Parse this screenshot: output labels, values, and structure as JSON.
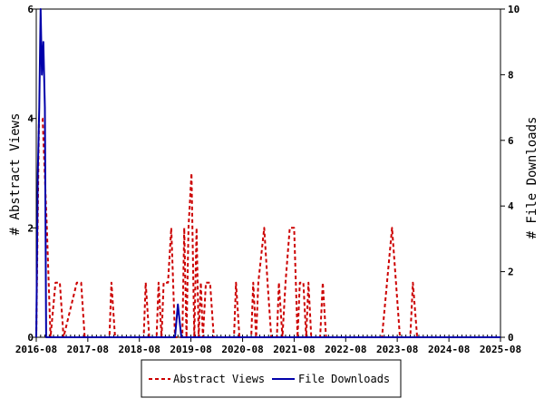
{
  "chart_data": {
    "type": "line",
    "title": "",
    "x_ticks": [
      "2016-08",
      "2017-08",
      "2018-08",
      "2019-08",
      "2020-08",
      "2021-08",
      "2022-08",
      "2023-08",
      "2024-08",
      "2025-08"
    ],
    "x_range": [
      "2016-08",
      "2025-08"
    ],
    "y_left": {
      "label": "# Abstract Views",
      "range": [
        0,
        6
      ],
      "ticks": [
        0,
        2,
        4,
        6
      ]
    },
    "y_right": {
      "label": "# File Downloads",
      "range": [
        0,
        10
      ],
      "ticks": [
        0,
        2,
        4,
        6,
        8,
        10
      ]
    },
    "legend_position": "bottom-center",
    "grid": false,
    "series": [
      {
        "name": "Abstract Views",
        "axis": "left",
        "color": "#cc0000",
        "style": "dashed",
        "points": [
          [
            "2016-08-01",
            0
          ],
          [
            "2016-08-20",
            4
          ],
          [
            "2016-09-15",
            4
          ],
          [
            "2016-10-15",
            2
          ],
          [
            "2016-11-10",
            0
          ],
          [
            "2016-12-15",
            1
          ],
          [
            "2017-01-15",
            1
          ],
          [
            "2017-02-10",
            0
          ],
          [
            "2017-05-15",
            1
          ],
          [
            "2017-06-15",
            1
          ],
          [
            "2017-07-10",
            0
          ],
          [
            "2018-01-01",
            0
          ],
          [
            "2018-01-15",
            1
          ],
          [
            "2018-02-10",
            0
          ],
          [
            "2018-09-01",
            0
          ],
          [
            "2018-09-15",
            1
          ],
          [
            "2018-10-10",
            0
          ],
          [
            "2018-12-01",
            0
          ],
          [
            "2018-12-15",
            1
          ],
          [
            "2019-01-05",
            0
          ],
          [
            "2019-01-20",
            1
          ],
          [
            "2019-02-20",
            1
          ],
          [
            "2019-03-15",
            2
          ],
          [
            "2019-04-10",
            0
          ],
          [
            "2019-06-01",
            0
          ],
          [
            "2019-06-15",
            2
          ],
          [
            "2019-07-01",
            0
          ],
          [
            "2019-07-15",
            2
          ],
          [
            "2019-08-05",
            3
          ],
          [
            "2019-08-25",
            0
          ],
          [
            "2019-09-10",
            2
          ],
          [
            "2019-09-25",
            0
          ],
          [
            "2019-10-10",
            1
          ],
          [
            "2019-10-25",
            0
          ],
          [
            "2019-11-15",
            1
          ],
          [
            "2019-12-15",
            1
          ],
          [
            "2020-01-10",
            0
          ],
          [
            "2020-06-01",
            0
          ],
          [
            "2020-06-15",
            1
          ],
          [
            "2020-07-10",
            0
          ],
          [
            "2020-10-01",
            0
          ],
          [
            "2020-10-15",
            1
          ],
          [
            "2020-11-05",
            0
          ],
          [
            "2020-11-20",
            1
          ],
          [
            "2021-01-01",
            2
          ],
          [
            "2021-01-25",
            1
          ],
          [
            "2021-02-20",
            0
          ],
          [
            "2021-04-01",
            0
          ],
          [
            "2021-04-15",
            1
          ],
          [
            "2021-05-10",
            0
          ],
          [
            "2021-06-01",
            1
          ],
          [
            "2021-07-01",
            2
          ],
          [
            "2021-08-01",
            2
          ],
          [
            "2021-08-25",
            0
          ],
          [
            "2021-09-10",
            1
          ],
          [
            "2021-10-05",
            1
          ],
          [
            "2021-10-25",
            0
          ],
          [
            "2021-11-10",
            1
          ],
          [
            "2021-11-30",
            0
          ],
          [
            "2022-02-01",
            0
          ],
          [
            "2022-02-20",
            1
          ],
          [
            "2022-03-15",
            0
          ],
          [
            "2023-04-15",
            0
          ],
          [
            "2023-06-25",
            2
          ],
          [
            "2023-08-20",
            0
          ],
          [
            "2023-11-01",
            0
          ],
          [
            "2023-11-20",
            1
          ],
          [
            "2023-12-20",
            0
          ],
          [
            "2025-08-01",
            0
          ]
        ]
      },
      {
        "name": "File Downloads",
        "axis": "right",
        "color": "#0000aa",
        "style": "solid",
        "points": [
          [
            "2016-08-01",
            0
          ],
          [
            "2016-08-12",
            5
          ],
          [
            "2016-08-22",
            7
          ],
          [
            "2016-09-01",
            10
          ],
          [
            "2016-09-10",
            8
          ],
          [
            "2016-09-20",
            9
          ],
          [
            "2016-10-01",
            7
          ],
          [
            "2016-10-10",
            0
          ],
          [
            "2019-04-10",
            0
          ],
          [
            "2019-05-01",
            1
          ],
          [
            "2019-05-25",
            0
          ],
          [
            "2025-08-01",
            0
          ]
        ]
      }
    ]
  }
}
